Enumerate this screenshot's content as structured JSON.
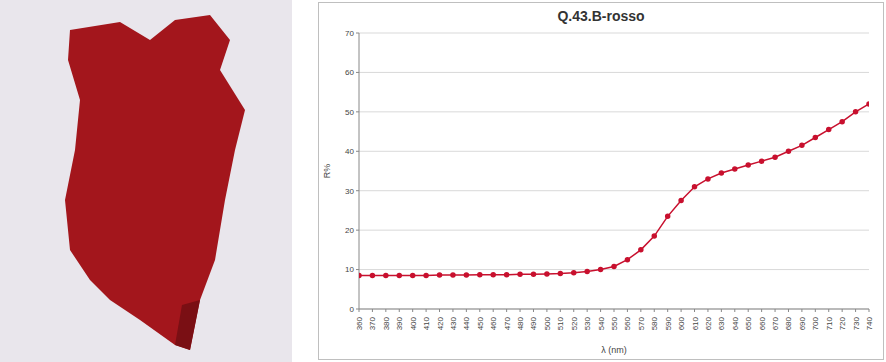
{
  "chart_data": {
    "type": "line",
    "title": "Q.43.B-rosso",
    "x_label": "λ (nm)",
    "y_label": "R%",
    "x": [
      360,
      370,
      380,
      390,
      400,
      410,
      420,
      430,
      440,
      450,
      460,
      470,
      480,
      490,
      500,
      510,
      520,
      530,
      540,
      550,
      560,
      570,
      580,
      590,
      600,
      610,
      620,
      630,
      640,
      650,
      660,
      670,
      680,
      690,
      700,
      710,
      720,
      730,
      740
    ],
    "values": [
      8.5,
      8.5,
      8.5,
      8.5,
      8.5,
      8.5,
      8.6,
      8.6,
      8.6,
      8.7,
      8.7,
      8.7,
      8.8,
      8.8,
      8.9,
      9.0,
      9.2,
      9.5,
      10.0,
      10.8,
      12.5,
      15.0,
      18.5,
      23.5,
      27.5,
      31.0,
      33.0,
      34.5,
      35.5,
      36.5,
      37.5,
      38.5,
      40.0,
      41.5,
      43.5,
      45.5,
      47.5,
      50.0,
      52.0
    ],
    "color": "#c8102e",
    "marker": "circle",
    "xlim": [
      360,
      740
    ],
    "xticks": [
      360,
      370,
      380,
      390,
      400,
      410,
      420,
      430,
      440,
      450,
      460,
      470,
      480,
      490,
      500,
      510,
      520,
      530,
      540,
      550,
      560,
      570,
      580,
      590,
      600,
      610,
      620,
      630,
      640,
      650,
      660,
      670,
      680,
      690,
      700,
      710,
      720,
      730,
      740
    ],
    "ylim": [
      0,
      70
    ],
    "yticks": [
      0,
      10,
      20,
      30,
      40,
      50,
      60,
      70
    ],
    "grid": true
  }
}
